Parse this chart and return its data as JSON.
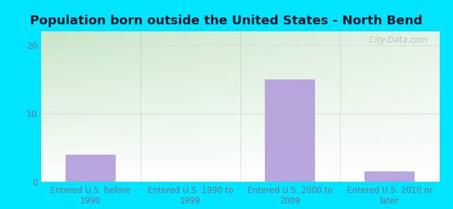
{
  "title": "Population born outside the United States - North Bend",
  "categories": [
    "Entered U.S. before\n1990",
    "Entered U.S. 1990 to\n1999",
    "Entered U.S. 2000 to\n2009",
    "Entered U.S. 2010 or\nlater"
  ],
  "values": [
    4.0,
    0.0,
    15.0,
    1.5
  ],
  "bar_color": "#b39ddb",
  "background_outer": "#00e5ff",
  "bg_top_left": "#c8e6c9",
  "bg_top_right": "#ffffff",
  "bg_bottom_left": "#c8e6c9",
  "bg_bottom_right": "#ffffff",
  "ylim": [
    0,
    22
  ],
  "yticks": [
    0,
    10,
    20
  ],
  "grid_color": "#dddddd",
  "watermark_text": "  City-Data.com",
  "title_fontsize": 13,
  "tick_fontsize": 8.5,
  "label_color": "#7a6a8a",
  "bar_width": 0.5
}
